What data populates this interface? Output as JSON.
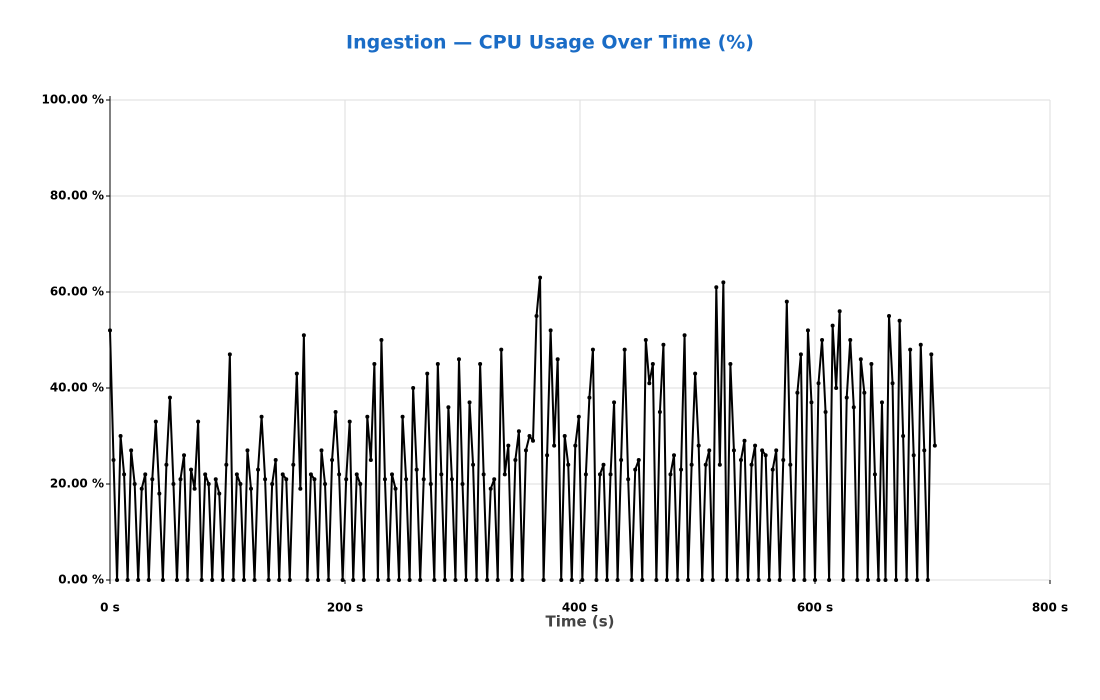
{
  "chart_data": {
    "type": "line",
    "title": "Ingestion — CPU Usage Over Time (%)",
    "x_label": "Time (s)",
    "xlim": [
      0,
      800
    ],
    "xticks": [
      {
        "value": 0,
        "label": "0 s"
      },
      {
        "value": 200,
        "label": "200 s"
      },
      {
        "value": 400,
        "label": "400 s"
      },
      {
        "value": 600,
        "label": "600 s"
      },
      {
        "value": 800,
        "label": "800 s"
      }
    ],
    "ylim": [
      0,
      100
    ],
    "yticks": [
      {
        "value": 0,
        "label": "0.00 %"
      },
      {
        "value": 20,
        "label": "20.00 %"
      },
      {
        "value": 40,
        "label": "40.00 %"
      },
      {
        "value": 60,
        "label": "60.00 %"
      },
      {
        "value": 80,
        "label": "80.00 %"
      },
      {
        "value": 100,
        "label": "100.00 %"
      }
    ],
    "grid": true,
    "title_color": "#1a6cc6",
    "x": [
      0,
      3,
      6,
      9,
      12,
      15,
      18,
      21,
      24,
      27,
      30,
      33,
      36,
      39,
      42,
      45,
      48,
      51,
      54,
      57,
      60,
      63,
      66,
      69,
      72,
      75,
      78,
      81,
      84,
      87,
      90,
      93,
      96,
      99,
      102,
      105,
      108,
      111,
      114,
      117,
      120,
      123,
      126,
      129,
      132,
      135,
      138,
      141,
      144,
      147,
      150,
      153,
      156,
      159,
      162,
      165,
      168,
      171,
      174,
      177,
      180,
      183,
      186,
      189,
      192,
      195,
      198,
      201,
      204,
      207,
      210,
      213,
      216,
      219,
      222,
      225,
      228,
      231,
      234,
      237,
      240,
      243,
      246,
      249,
      252,
      255,
      258,
      261,
      264,
      267,
      270,
      273,
      276,
      279,
      282,
      285,
      288,
      291,
      294,
      297,
      300,
      303,
      306,
      309,
      312,
      315,
      318,
      321,
      324,
      327,
      330,
      333,
      336,
      339,
      342,
      345,
      348,
      351,
      354,
      357,
      360,
      363,
      366,
      369,
      372,
      375,
      378,
      381,
      384,
      387,
      390,
      393,
      396,
      399,
      402,
      405,
      408,
      411,
      414,
      417,
      420,
      423,
      426,
      429,
      432,
      435,
      438,
      441,
      444,
      447,
      450,
      453,
      456,
      459,
      462,
      465,
      468,
      471,
      474,
      477,
      480,
      483,
      486,
      489,
      492,
      495,
      498,
      501,
      504,
      507,
      510,
      513,
      516,
      519,
      522,
      525,
      528,
      531,
      534,
      537,
      540,
      543,
      546,
      549,
      552,
      555,
      558,
      561,
      564,
      567,
      570,
      573,
      576,
      579,
      582,
      585,
      588,
      591,
      594,
      597,
      600,
      603,
      606,
      609,
      612,
      615,
      618,
      621,
      624,
      627,
      630,
      633,
      636,
      639,
      642,
      645,
      648,
      651,
      654,
      657,
      660,
      663,
      666,
      669,
      672,
      675,
      678,
      681,
      684,
      687,
      690,
      693,
      696,
      699,
      702
    ],
    "series": [
      {
        "color": "#000000",
        "values": [
          52,
          25,
          0,
          30,
          22,
          0,
          27,
          20,
          0,
          19,
          22,
          0,
          21,
          33,
          18,
          0,
          24,
          38,
          20,
          0,
          21,
          26,
          0,
          23,
          19,
          33,
          0,
          22,
          20,
          0,
          21,
          18,
          0,
          24,
          47,
          0,
          22,
          20,
          0,
          27,
          19,
          0,
          23,
          34,
          21,
          0,
          20,
          25,
          0,
          22,
          21,
          0,
          24,
          43,
          19,
          51,
          0,
          22,
          21,
          0,
          27,
          20,
          0,
          25,
          35,
          22,
          0,
          21,
          33,
          0,
          22,
          20,
          0,
          34,
          25,
          45,
          0,
          50,
          21,
          0,
          22,
          19,
          0,
          34,
          21,
          0,
          40,
          23,
          0,
          21,
          43,
          20,
          0,
          45,
          22,
          0,
          36,
          21,
          0,
          46,
          20,
          0,
          37,
          24,
          0,
          45,
          22,
          0,
          19,
          21,
          0,
          48,
          22,
          28,
          0,
          25,
          31,
          0,
          27,
          30,
          29,
          55,
          63,
          0,
          26,
          52,
          28,
          46,
          0,
          30,
          24,
          0,
          28,
          34,
          0,
          22,
          38,
          48,
          0,
          22,
          24,
          0,
          22,
          37,
          0,
          25,
          48,
          21,
          0,
          23,
          25,
          0,
          50,
          41,
          45,
          0,
          35,
          49,
          0,
          22,
          26,
          0,
          23,
          51,
          0,
          24,
          43,
          28,
          0,
          24,
          27,
          0,
          61,
          24,
          62,
          0,
          45,
          27,
          0,
          25,
          29,
          0,
          24,
          28,
          0,
          27,
          26,
          0,
          23,
          27,
          0,
          25,
          58,
          24,
          0,
          39,
          47,
          0,
          52,
          37,
          0,
          41,
          50,
          35,
          0,
          53,
          40,
          56,
          0,
          38,
          50,
          36,
          0,
          46,
          39,
          0,
          45,
          22,
          0,
          37,
          0,
          55,
          41,
          0,
          54,
          30,
          0,
          48,
          26,
          0,
          49,
          27,
          0,
          47,
          28
        ]
      }
    ]
  }
}
